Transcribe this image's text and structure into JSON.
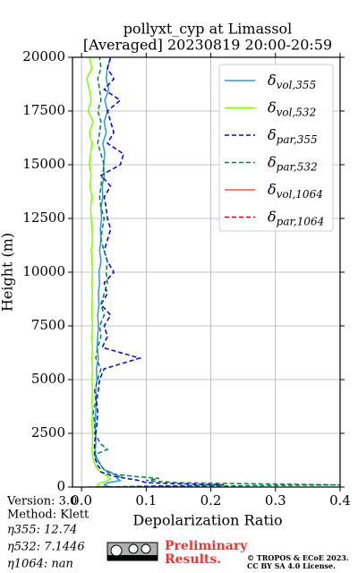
{
  "chart_data": {
    "type": "profile",
    "title": "pollyxt_cyp at Limassol",
    "subtitle": "[Averaged] 20230819 20:00-20:59",
    "xlabel": "Depolarization Ratio",
    "ylabel": "Height (m)",
    "xlim": [
      -0.014,
      0.4
    ],
    "ylim": [
      0,
      20000
    ],
    "xticks": [
      {
        "value": 0,
        "label": "0.0"
      },
      0.1,
      0.2,
      0.3,
      0.4
    ],
    "yticks": [
      0,
      2500,
      5000,
      7500,
      10000,
      12500,
      15000,
      17500,
      20000
    ],
    "grid": true,
    "legend": "upper right",
    "heights": [
      0,
      100,
      200,
      300,
      400,
      500,
      600,
      700,
      800,
      1000,
      1250,
      1500,
      1750,
      2000,
      2500,
      3000,
      3500,
      4000,
      4500,
      5000,
      5500,
      6000,
      6500,
      7000,
      7500,
      8000,
      8500,
      9000,
      9500,
      10000,
      10500,
      11000,
      11500,
      12000,
      12500,
      13000,
      13500,
      14000,
      14500,
      15000,
      15500,
      16000,
      16500,
      17000,
      17500,
      18000,
      18500,
      19000,
      19500,
      20000
    ],
    "series": [
      {
        "name": "δvol,355",
        "color": "#2f96e0",
        "dashed": false,
        "values": [
          0.045,
          0.035,
          0.04,
          0.06,
          0.055,
          0.06,
          0.05,
          0.045,
          0.035,
          0.03,
          0.025,
          0.022,
          0.021,
          0.022,
          0.022,
          0.021,
          0.022,
          0.023,
          0.022,
          0.024,
          0.023,
          0.026,
          0.024,
          0.025,
          0.026,
          0.025,
          0.027,
          0.026,
          0.028,
          0.027,
          0.03,
          0.028,
          0.03,
          0.029,
          0.031,
          0.03,
          0.033,
          0.032,
          0.035,
          0.034,
          0.036,
          0.033,
          0.038,
          0.035,
          0.04,
          0.036,
          0.042,
          0.038,
          0.04,
          0.045
        ]
      },
      {
        "name": "δvol,532",
        "color": "#80ff00",
        "dashed": false,
        "values": [
          0.03,
          0.025,
          0.03,
          0.04,
          0.045,
          0.04,
          0.035,
          0.03,
          0.025,
          0.022,
          0.018,
          0.017,
          0.016,
          0.017,
          0.017,
          0.016,
          0.017,
          0.016,
          0.017,
          0.016,
          0.017,
          0.016,
          0.017,
          0.016,
          0.017,
          0.016,
          0.016,
          0.017,
          0.016,
          0.017,
          0.016,
          0.015,
          0.017,
          0.016,
          0.015,
          0.014,
          0.016,
          0.013,
          0.015,
          0.012,
          0.014,
          0.016,
          0.012,
          0.018,
          0.01,
          0.015,
          0.012,
          0.008,
          0.016,
          0.012
        ]
      },
      {
        "name": "δpar,355",
        "color": "#0000dd",
        "dashed": true,
        "values": [
          0.03,
          0.22,
          0.1,
          0.09,
          0.07,
          0.05,
          0.04,
          0.03,
          0.03,
          0.025,
          0.022,
          0.02,
          0.02,
          0.02,
          0.022,
          0.024,
          0.025,
          0.023,
          0.026,
          0.028,
          0.035,
          0.09,
          0.032,
          0.04,
          0.035,
          0.045,
          0.03,
          0.04,
          0.035,
          0.05,
          0.04,
          0.035,
          0.04,
          0.045,
          0.04,
          0.038,
          0.035,
          0.045,
          0.03,
          0.06,
          0.065,
          0.04,
          0.05,
          0.045,
          0.04,
          0.06,
          0.035,
          0.05,
          0.04,
          0.045
        ]
      },
      {
        "name": "δpar,532",
        "color": "#008040",
        "dashed": true,
        "values": [
          0.01,
          0.4,
          0.15,
          0.1,
          0.12,
          0.08,
          0.05,
          0.04,
          0.035,
          0.03,
          0.025,
          0.02,
          0.04,
          0.03,
          0.02,
          0.02,
          0.018,
          0.022,
          0.02,
          0.025,
          0.03,
          0.022,
          0.025,
          0.03,
          0.028,
          0.035,
          0.03,
          0.035,
          0.04,
          0.038,
          0.04,
          0.035,
          0.03,
          0.032,
          0.035,
          0.03,
          0.028,
          0.03,
          0.032,
          0.035,
          0.03,
          0.025,
          0.028,
          0.03,
          0.025,
          0.03,
          0.028,
          0.025,
          0.03,
          0.028
        ]
      },
      {
        "name": "δvol,1064",
        "color": "#ff5533",
        "dashed": false,
        "values": [
          null,
          null,
          null,
          null,
          null,
          null,
          null,
          null,
          null,
          null,
          null,
          null,
          null,
          null,
          null,
          null,
          null,
          null,
          null,
          null,
          null,
          null,
          null,
          null,
          null,
          null,
          null,
          null,
          null,
          null,
          null,
          null,
          null,
          null,
          null,
          null,
          null,
          null,
          null,
          null,
          null,
          null,
          null,
          null,
          null,
          null,
          null,
          null,
          null,
          null
        ]
      },
      {
        "name": "δpar,1064",
        "color": "#dd0000",
        "dashed": true,
        "values": [
          null,
          null,
          null,
          null,
          null,
          null,
          null,
          null,
          null,
          null,
          null,
          null,
          null,
          null,
          null,
          null,
          null,
          null,
          null,
          null,
          null,
          null,
          null,
          null,
          null,
          null,
          null,
          null,
          null,
          null,
          null,
          null,
          null,
          null,
          null,
          null,
          null,
          null,
          null,
          null,
          null,
          null,
          null,
          null,
          null,
          null,
          null,
          null,
          null,
          null
        ]
      }
    ],
    "annotations": [
      "Version: 3.0",
      "Method: Klett",
      "η355:  12.74",
      "η532: 7.1446",
      "η1064:    nan"
    ],
    "stamp": [
      "Preliminary",
      "Results."
    ],
    "copyright": [
      "© TROPOS & ECoE 2023.",
      "CC BY SA 4.0 License."
    ]
  }
}
